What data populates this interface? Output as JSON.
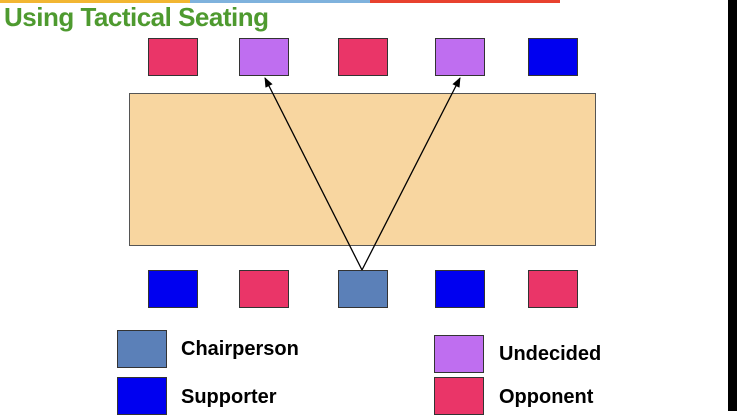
{
  "title": "Using Tactical Seating",
  "colors": {
    "title": "#4e9a2f",
    "table": "#f8d6a0",
    "chairperson": "#5b80b8",
    "supporter": "#0000f0",
    "undecided": "#bf6ef0",
    "opponent": "#ea3568",
    "topbar_left": "#f2b632",
    "topbar_mid": "#7fb2dd",
    "topbar_right": "#e8412e"
  },
  "seats": {
    "top": [
      "opponent",
      "undecided",
      "opponent",
      "undecided",
      "supporter"
    ],
    "bottom": [
      "supporter",
      "opponent",
      "chairperson",
      "supporter",
      "opponent"
    ]
  },
  "legend": {
    "chairperson": "Chairperson",
    "supporter": "Supporter",
    "undecided": "Undecided",
    "opponent": "Opponent"
  }
}
